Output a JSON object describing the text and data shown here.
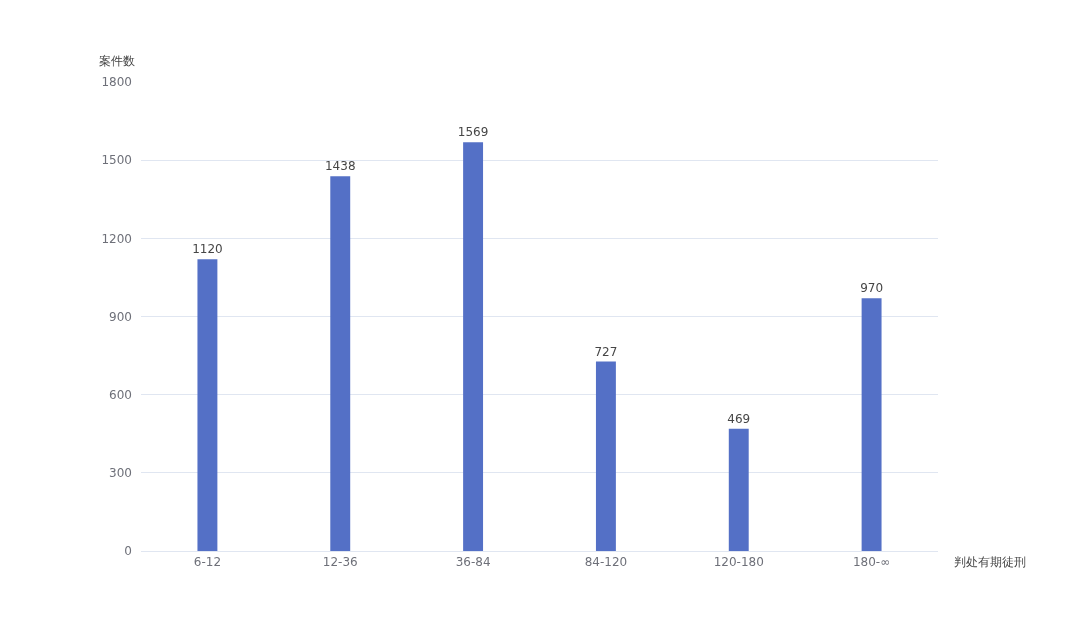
{
  "chart_data": {
    "type": "bar",
    "xlabel": "判处有期徒刑",
    "ylabel": "案件数",
    "categories": [
      "6-12",
      "12-36",
      "36-84",
      "84-120",
      "120-180",
      "180-∞"
    ],
    "values": [
      1120,
      1438,
      1569,
      727,
      469,
      970
    ],
    "color": "#5470c6",
    "ylim": [
      0,
      1800
    ],
    "yticks": [
      0,
      300,
      600,
      900,
      1200,
      1500,
      1800
    ],
    "grid": "y",
    "data_labels": true,
    "legend": false
  }
}
